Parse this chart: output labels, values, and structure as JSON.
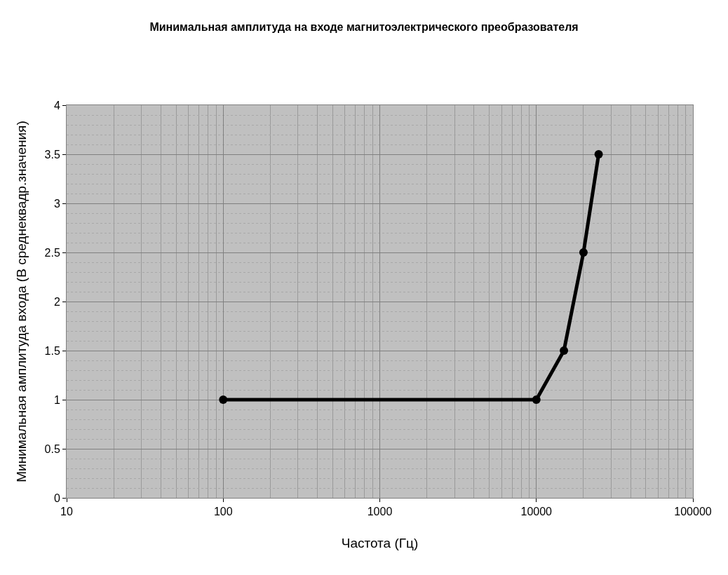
{
  "chart_data": {
    "type": "line",
    "title": "Минимальная амплитуда на входе магнитоэлектрического преобразователя",
    "xlabel": "Частота (Гц)",
    "ylabel": "Минимальная амплитуда входа (В среднеквадр.значения)",
    "x": [
      100,
      10000,
      15000,
      20000,
      25000
    ],
    "series": [
      {
        "color": "#000000",
        "values": [
          1,
          1,
          1.5,
          2.5,
          3.5
        ]
      }
    ],
    "xlim": [
      10,
      100000
    ],
    "xticks": [
      10,
      100,
      1000,
      10000,
      100000
    ],
    "ylim": [
      0,
      4
    ],
    "yticks": [
      0,
      0.5,
      1,
      1.5,
      2,
      2.5,
      3,
      3.5,
      4
    ],
    "log": "x",
    "grid": true,
    "marker": "circle",
    "line_style": "solid"
  }
}
